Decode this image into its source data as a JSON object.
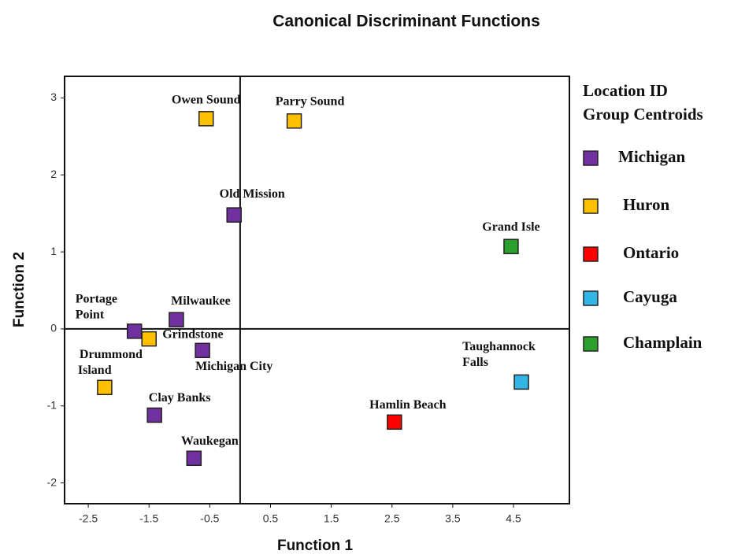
{
  "chart_data": {
    "type": "scatter",
    "title": "Canonical Discriminant Functions",
    "x_label": "Function 1",
    "y_label": "Function 2",
    "legend_title": [
      "Location ID",
      "Group Centroids"
    ],
    "legend_position": "right",
    "zero_lines": true,
    "xlim": [
      -2.89,
      5.42
    ],
    "ylim": [
      -2.27,
      3.28
    ],
    "xticks": [
      -2.5,
      -1.5,
      -0.5,
      0.5,
      1.5,
      2.5,
      3.5,
      4.5
    ],
    "yticks": [
      -2,
      -1,
      0,
      1,
      2,
      3
    ],
    "series": [
      {
        "name": "Michigan",
        "color": "#7030a0",
        "labels": [
          [
            "Old Mission"
          ],
          [
            "Portage",
            "Point"
          ],
          [
            "Milwaukee"
          ],
          [
            "Michigan  City"
          ],
          [
            "Clay Banks"
          ],
          [
            "Waukegan"
          ]
        ],
        "x": [
          -0.1,
          -1.74,
          -1.05,
          -0.62,
          -1.41,
          -0.76
        ],
        "values": [
          1.48,
          -0.03,
          0.12,
          -0.28,
          -1.12,
          -1.68
        ]
      },
      {
        "name": "Huron",
        "color": "#ffc000",
        "labels": [
          [
            "Owen Sound"
          ],
          [
            "Parry Sound"
          ],
          [
            "Grindstone"
          ],
          [
            "Drummond",
            "Island"
          ]
        ],
        "x": [
          -0.56,
          0.89,
          -1.5,
          -2.23
        ],
        "values": [
          2.73,
          2.7,
          -0.13,
          -0.76
        ]
      },
      {
        "name": "Ontario",
        "color": "#ff0000",
        "labels": [
          [
            "Hamlin  Beach"
          ]
        ],
        "x": [
          2.54
        ],
        "values": [
          -1.21
        ]
      },
      {
        "name": "Cayuga",
        "color": "#33b5e5",
        "labels": [
          [
            "Taughannock",
            "Falls"
          ]
        ],
        "x": [
          4.63
        ],
        "values": [
          -0.69
        ]
      },
      {
        "name": "Champlain",
        "color": "#2ca02c",
        "labels": [
          [
            "Grand Isle"
          ]
        ],
        "x": [
          4.46
        ],
        "values": [
          1.07
        ]
      }
    ]
  }
}
